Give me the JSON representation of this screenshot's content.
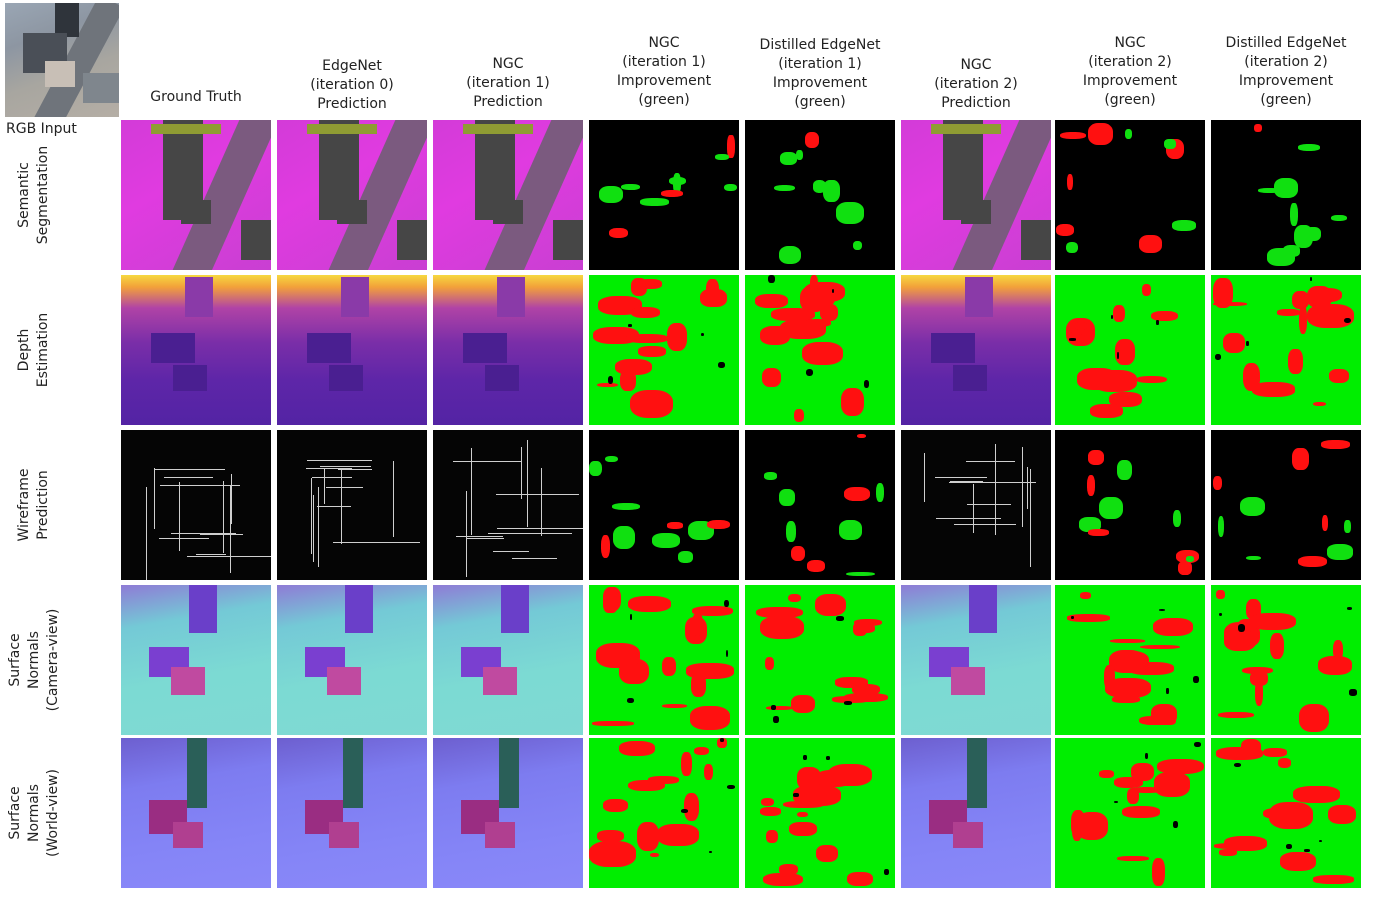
{
  "rgb_input_label": "RGB Input",
  "columns": [
    {
      "lines": [
        "Ground Truth"
      ]
    },
    {
      "lines": [
        "EdgeNet",
        "(iteration 0)",
        "Prediction"
      ]
    },
    {
      "lines": [
        "NGC",
        "(iteration 1)",
        "Prediction"
      ]
    },
    {
      "lines": [
        "NGC",
        "(iteration 1)",
        "Improvement",
        "(green)"
      ]
    },
    {
      "lines": [
        "Distilled EdgeNet",
        "(iteration 1)",
        "Improvement",
        "(green)"
      ]
    },
    {
      "lines": [
        "NGC",
        "(iteration 2)",
        "Prediction"
      ]
    },
    {
      "lines": [
        "NGC",
        "(iteration 2)",
        "Improvement",
        "(green)"
      ]
    },
    {
      "lines": [
        "Distilled EdgeNet",
        "(iteration 2)",
        "Improvement",
        "(green)"
      ]
    }
  ],
  "rows": [
    {
      "lines": [
        "Semantic",
        "Segmentation"
      ],
      "kind": "seg"
    },
    {
      "lines": [
        "Depth",
        "Estimation"
      ],
      "kind": "depth"
    },
    {
      "lines": [
        "Wireframe",
        "Prediction"
      ],
      "kind": "wire"
    },
    {
      "lines": [
        "Surface",
        "Normals",
        "(Camera-view)"
      ],
      "kind": "ncam"
    },
    {
      "lines": [
        "Surface",
        "Normals",
        "(World-view)"
      ],
      "kind": "nworld"
    }
  ],
  "colors": {
    "improvement": "#00ee00",
    "degradation": "#ff1010"
  }
}
